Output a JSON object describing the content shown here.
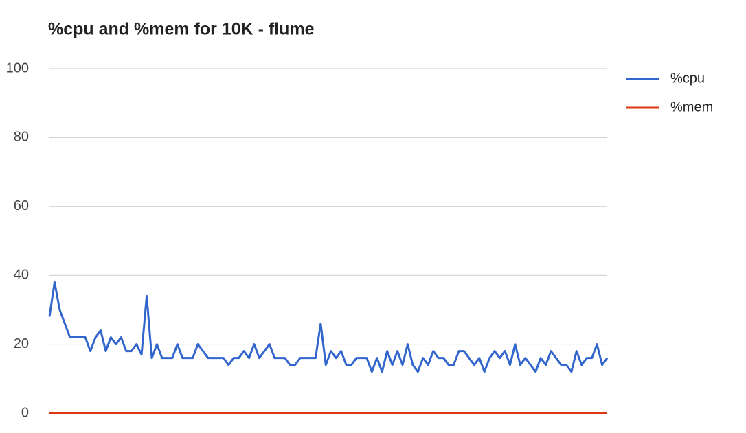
{
  "chart_data": {
    "type": "line",
    "title": "%cpu and %mem for 10K - flume",
    "series": [
      {
        "name": "%cpu",
        "color": "#3366cc",
        "values": [
          28,
          38,
          30,
          26,
          22,
          22,
          22,
          22,
          18,
          22,
          24,
          18,
          22,
          20,
          22,
          18,
          18,
          20,
          17,
          34,
          16,
          20,
          16,
          16,
          16,
          20,
          16,
          16,
          16,
          20,
          18,
          16,
          16,
          16,
          16,
          14,
          16,
          16,
          18,
          16,
          20,
          16,
          18,
          20,
          16,
          16,
          16,
          14,
          14,
          16,
          16,
          16,
          16,
          26,
          14,
          18,
          16,
          18,
          14,
          14,
          16,
          16,
          16,
          12,
          16,
          12,
          18,
          14,
          18,
          14,
          20,
          14,
          12,
          16,
          14,
          18,
          16,
          16,
          14,
          14,
          18,
          18,
          16,
          14,
          16,
          12,
          16,
          18,
          16,
          18,
          14,
          20,
          14,
          16,
          14,
          12,
          16,
          14,
          18,
          16,
          14,
          14,
          12,
          18,
          14,
          16,
          16,
          20,
          14,
          16
        ]
      },
      {
        "name": "%mem",
        "color": "#dc3912",
        "values": [
          0,
          0,
          0,
          0,
          0,
          0,
          0,
          0,
          0,
          0,
          0,
          0,
          0,
          0,
          0,
          0,
          0,
          0,
          0,
          0,
          0,
          0,
          0,
          0,
          0,
          0,
          0,
          0,
          0,
          0,
          0,
          0,
          0,
          0,
          0,
          0,
          0,
          0,
          0,
          0,
          0,
          0,
          0,
          0,
          0,
          0,
          0,
          0,
          0,
          0,
          0,
          0,
          0,
          0,
          0,
          0,
          0,
          0,
          0,
          0,
          0,
          0,
          0,
          0,
          0,
          0,
          0,
          0,
          0,
          0,
          0,
          0,
          0,
          0,
          0,
          0,
          0,
          0,
          0,
          0,
          0,
          0,
          0,
          0,
          0,
          0,
          0,
          0,
          0,
          0,
          0,
          0,
          0,
          0,
          0,
          0,
          0,
          0,
          0,
          0,
          0,
          0,
          0,
          0,
          0,
          0,
          0,
          0,
          0,
          0
        ]
      }
    ],
    "ylim": [
      0,
      100
    ],
    "yticks": [
      0,
      20,
      40,
      60,
      80,
      100
    ],
    "grid": true,
    "legend": "right"
  }
}
